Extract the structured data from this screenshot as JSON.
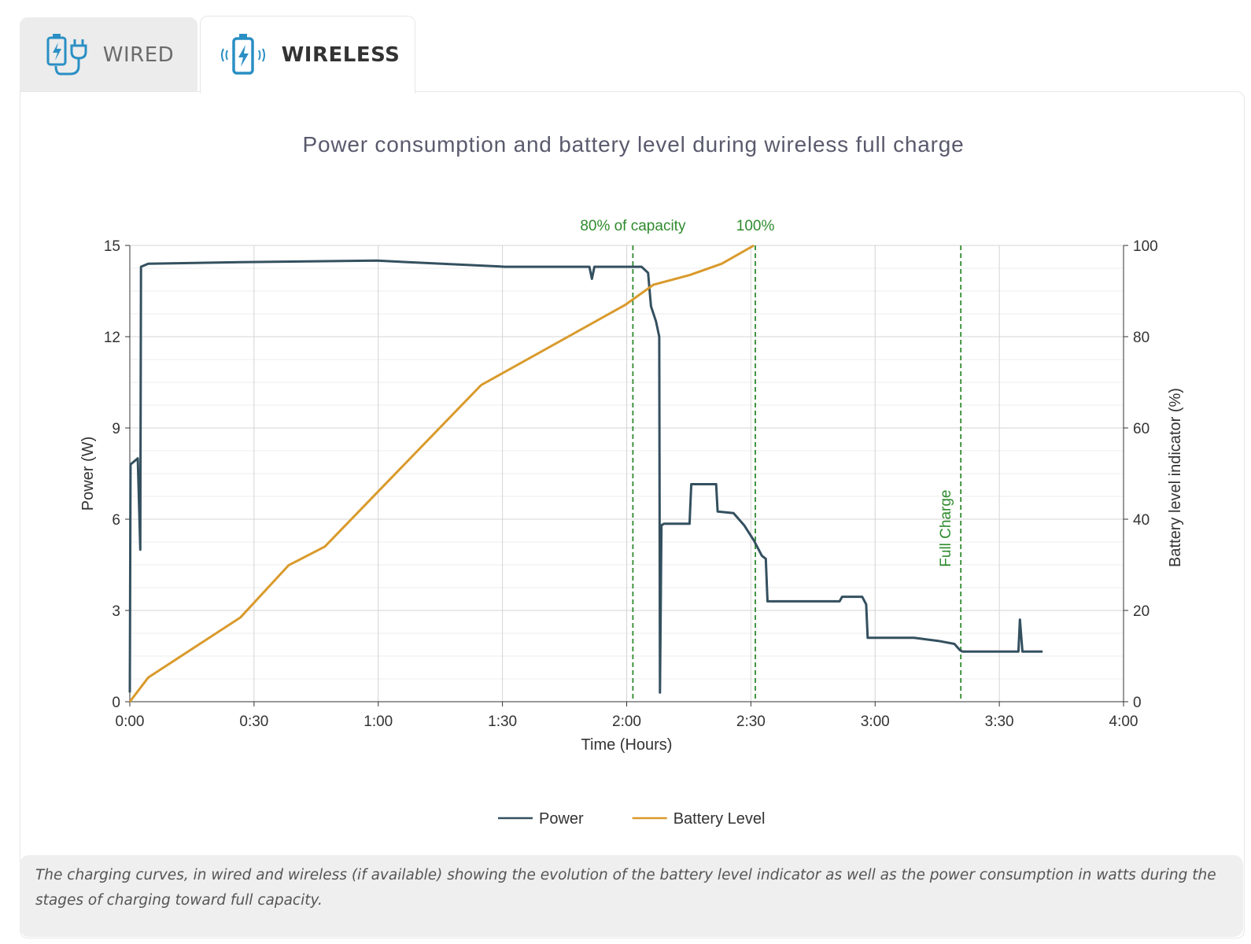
{
  "tabs": [
    {
      "label": "WIRED",
      "active": false
    },
    {
      "label": "WIRELESS",
      "active": true
    }
  ],
  "caption": "The charging curves, in wired and wireless (if available) showing the evolution of the battery level indicator as well as the power consumption in watts during the stages of charging toward full capacity.",
  "chart_data": {
    "type": "line",
    "title": "Power consumption and battery level during wireless full charge",
    "x_label": "Time (Hours)",
    "y_label": "Power (W)",
    "y2_label": "Battery level indicator (%)",
    "xlim": [
      0,
      4
    ],
    "xticks": [
      {
        "value": 0,
        "label": "0:00"
      },
      {
        "value": 0.5,
        "label": "0:30"
      },
      {
        "value": 1,
        "label": "1:00"
      },
      {
        "value": 1.5,
        "label": "1:30"
      },
      {
        "value": 2,
        "label": "2:00"
      },
      {
        "value": 2.5,
        "label": "2:30"
      },
      {
        "value": 3,
        "label": "3:00"
      },
      {
        "value": 3.5,
        "label": "3:30"
      },
      {
        "value": 4,
        "label": "4:00"
      }
    ],
    "ylim": [
      0,
      15
    ],
    "yticks": [
      0,
      3,
      6,
      9,
      12,
      15
    ],
    "y2lim": [
      0,
      100
    ],
    "y2ticks": [
      0,
      20,
      40,
      60,
      80,
      100
    ],
    "grid": true,
    "legend": "bottom",
    "series": [
      {
        "name": "Power",
        "color": "#34505f",
        "x": [
          0,
          0.003,
          0.032,
          0.042,
          0.045,
          0.074,
          0.446,
          0.994,
          1.511,
          1.85,
          1.86,
          1.87,
          2.06,
          2.086,
          2.098,
          2.118,
          2.131,
          2.134,
          2.14,
          2.15,
          2.253,
          2.26,
          2.36,
          2.366,
          2.43,
          2.473,
          2.512,
          2.544,
          2.56,
          2.567,
          2.72,
          2.857,
          2.867,
          2.948,
          2.964,
          2.97,
          3.157,
          3.254,
          3.319,
          3.341,
          3.351,
          3.577,
          3.583,
          3.593,
          3.674
        ],
        "values": [
          0.3,
          7.8,
          8.0,
          5.0,
          14.3,
          14.4,
          14.45,
          14.5,
          14.3,
          14.3,
          13.9,
          14.3,
          14.3,
          14.1,
          13.0,
          12.5,
          12.0,
          0.3,
          5.8,
          5.85,
          5.85,
          7.15,
          7.15,
          6.25,
          6.2,
          5.8,
          5.3,
          4.8,
          4.7,
          3.3,
          3.3,
          3.3,
          3.45,
          3.45,
          3.2,
          2.1,
          2.1,
          2.0,
          1.9,
          1.7,
          1.65,
          1.65,
          2.7,
          1.65,
          1.65
        ]
      },
      {
        "name": "Battery Level",
        "color": "#d99a2b",
        "axis": "y2",
        "x": [
          0,
          0.074,
          0.446,
          0.639,
          0.785,
          1.414,
          1.995,
          2.108,
          2.253,
          2.383,
          2.512
        ],
        "values": [
          0,
          5.3,
          18.5,
          29.9,
          34,
          69.4,
          87,
          91.4,
          93.5,
          96,
          100
        ]
      }
    ],
    "annotations": [
      {
        "label": "80% of capacity",
        "x": 2.025,
        "color": "#2e8b2e"
      },
      {
        "label": "100%",
        "x": 2.518,
        "color": "#2e8b2e"
      },
      {
        "label": "Full Charge",
        "x": 3.345,
        "color": "#2e8b2e"
      }
    ]
  }
}
